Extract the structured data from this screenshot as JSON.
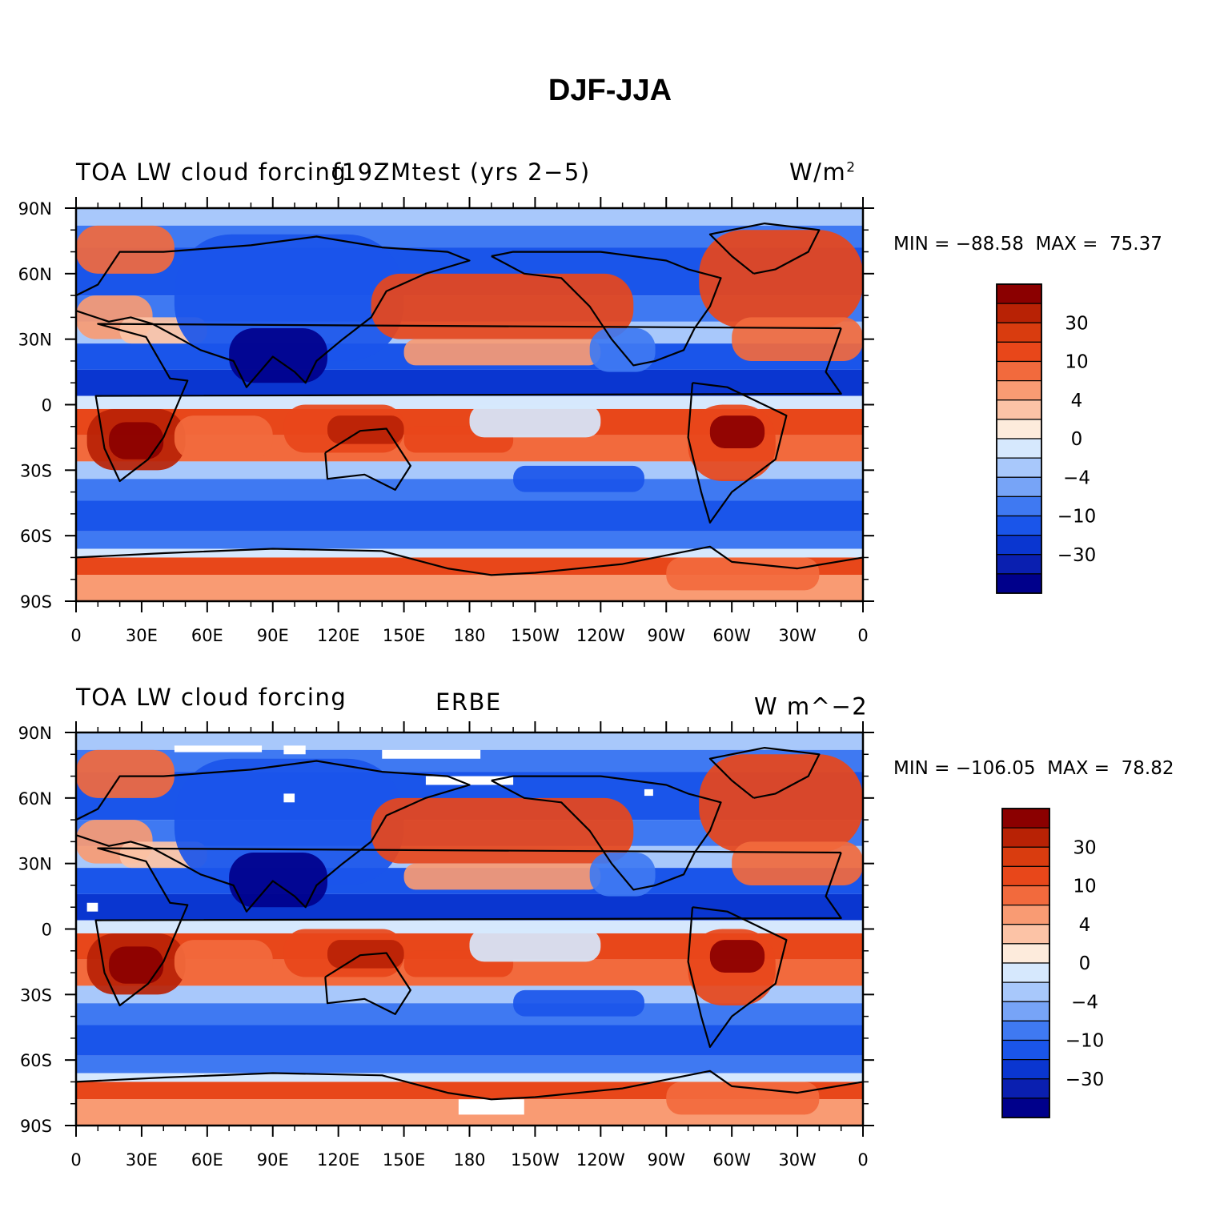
{
  "title": "DJF-JJA",
  "colors": [
    "#00008b",
    "#0a1fb0",
    "#0a36d0",
    "#1a55ea",
    "#3f79f2",
    "#77a4f7",
    "#a8c8fb",
    "#d6e8fd",
    "#fdebdc",
    "#fcc3a6",
    "#f99b73",
    "#f26a3d",
    "#e8471a",
    "#d93c0f",
    "#b82205",
    "#8b0000"
  ],
  "colorbar_labels": [
    "30",
    "10",
    "4",
    "0",
    "−4",
    "−10",
    "−30"
  ],
  "x_ticks": [
    "0",
    "30E",
    "60E",
    "90E",
    "120E",
    "150E",
    "180",
    "150W",
    "120W",
    "90W",
    "60W",
    "30W",
    "0"
  ],
  "y_ticks": [
    "90N",
    "60N",
    "30N",
    "0",
    "30S",
    "60S",
    "90S"
  ],
  "panels": [
    {
      "left_title": "TOA LW cloud forcing",
      "center_title": "f19ZMtest (yrs 2−5)",
      "units_label": "W/m",
      "units_sup": "2",
      "min_label": "MIN =",
      "min_value": "−88.58",
      "max_label": "MAX =",
      "max_value": "75.37"
    },
    {
      "left_title": "TOA LW cloud forcing",
      "center_title": "ERBE",
      "units_label": "W m^−2",
      "units_sup": "",
      "min_label": "MIN =",
      "min_value": "−106.05",
      "max_label": "MAX =",
      "max_value": "78.82"
    }
  ]
}
